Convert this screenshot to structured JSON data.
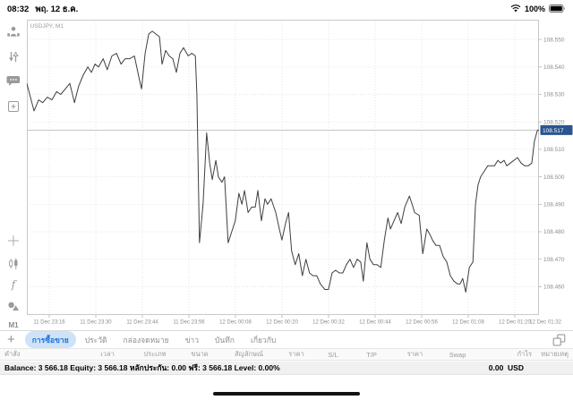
{
  "status_bar": {
    "time": "08:32",
    "date": "พฤ. 12 ธ.ค.",
    "battery_percent": "100%"
  },
  "sidebar": {
    "timeframe_label": "M1",
    "indicators_label": "f"
  },
  "chart": {
    "symbol_label": "USDJPY, M1",
    "badge_color": "#2a5490",
    "line_color": "#3f3f3f",
    "grid_color": "#dcdcdc",
    "axis_text_color": "#8c8c8c",
    "price_line_color": "#b3b3b3",
    "border_color": "#c9c9c9"
  },
  "chart_data": {
    "type": "line",
    "title": "USDJPY, M1",
    "symbol": "USDJPY",
    "timeframe": "M1",
    "current_price": 108.517,
    "ylim": [
      108.4497,
      108.5572
    ],
    "grid": true,
    "y_ticks": [
      108.55,
      108.54,
      108.53,
      108.52,
      108.51,
      108.5,
      108.49,
      108.48,
      108.47,
      108.46
    ],
    "x_tick_labels": [
      "11 Dec 23:16",
      "11 Dec 23:30",
      "11 Dec 23:44",
      "11 Dec 23:56",
      "12 Dec 00:08",
      "12 Dec 00:20",
      "12 Dec 00:32",
      "12 Dec 00:44",
      "12 Dec 00:56",
      "12 Dec 01:08",
      "12 Dec 01:20",
      "12 Dec 01:32"
    ],
    "points": [
      [
        0.0,
        108.534
      ],
      [
        0.007,
        108.529
      ],
      [
        0.014,
        108.524
      ],
      [
        0.023,
        108.528
      ],
      [
        0.031,
        108.527
      ],
      [
        0.04,
        108.529
      ],
      [
        0.049,
        108.528
      ],
      [
        0.058,
        108.531
      ],
      [
        0.066,
        108.53
      ],
      [
        0.075,
        108.532
      ],
      [
        0.084,
        108.534
      ],
      [
        0.093,
        108.527
      ],
      [
        0.101,
        108.533
      ],
      [
        0.11,
        108.537
      ],
      [
        0.119,
        108.54
      ],
      [
        0.126,
        108.538
      ],
      [
        0.133,
        108.541
      ],
      [
        0.14,
        108.54
      ],
      [
        0.149,
        108.543
      ],
      [
        0.157,
        108.539
      ],
      [
        0.166,
        108.544
      ],
      [
        0.175,
        108.545
      ],
      [
        0.184,
        108.541
      ],
      [
        0.192,
        108.543
      ],
      [
        0.201,
        108.543
      ],
      [
        0.21,
        108.544
      ],
      [
        0.219,
        108.536
      ],
      [
        0.224,
        108.532
      ],
      [
        0.231,
        108.545
      ],
      [
        0.238,
        108.552
      ],
      [
        0.245,
        108.553
      ],
      [
        0.252,
        108.552
      ],
      [
        0.259,
        108.551
      ],
      [
        0.264,
        108.541
      ],
      [
        0.271,
        108.546
      ],
      [
        0.278,
        108.544
      ],
      [
        0.285,
        108.543
      ],
      [
        0.292,
        108.538
      ],
      [
        0.299,
        108.545
      ],
      [
        0.306,
        108.547
      ],
      [
        0.315,
        108.544
      ],
      [
        0.322,
        108.545
      ],
      [
        0.329,
        108.544
      ],
      [
        0.332,
        108.53
      ],
      [
        0.337,
        108.476
      ],
      [
        0.344,
        108.49
      ],
      [
        0.351,
        108.516
      ],
      [
        0.357,
        108.505
      ],
      [
        0.362,
        108.499
      ],
      [
        0.369,
        108.506
      ],
      [
        0.374,
        108.5
      ],
      [
        0.381,
        108.498
      ],
      [
        0.386,
        108.5
      ],
      [
        0.393,
        108.476
      ],
      [
        0.4,
        108.48
      ],
      [
        0.407,
        108.484
      ],
      [
        0.414,
        108.494
      ],
      [
        0.42,
        108.49
      ],
      [
        0.425,
        108.495
      ],
      [
        0.432,
        108.487
      ],
      [
        0.439,
        108.489
      ],
      [
        0.446,
        108.489
      ],
      [
        0.451,
        108.495
      ],
      [
        0.458,
        108.484
      ],
      [
        0.465,
        108.492
      ],
      [
        0.47,
        108.49
      ],
      [
        0.477,
        108.492
      ],
      [
        0.486,
        108.487
      ],
      [
        0.493,
        108.481
      ],
      [
        0.498,
        108.477
      ],
      [
        0.505,
        108.483
      ],
      [
        0.511,
        108.487
      ],
      [
        0.517,
        108.473
      ],
      [
        0.524,
        108.468
      ],
      [
        0.531,
        108.472
      ],
      [
        0.538,
        108.464
      ],
      [
        0.545,
        108.47
      ],
      [
        0.552,
        108.465
      ],
      [
        0.559,
        108.464
      ],
      [
        0.566,
        108.464
      ],
      [
        0.573,
        108.461
      ],
      [
        0.582,
        108.459
      ],
      [
        0.589,
        108.459
      ],
      [
        0.596,
        108.465
      ],
      [
        0.603,
        108.466
      ],
      [
        0.61,
        108.465
      ],
      [
        0.617,
        108.465
      ],
      [
        0.624,
        108.468
      ],
      [
        0.631,
        108.47
      ],
      [
        0.638,
        108.467
      ],
      [
        0.645,
        108.47
      ],
      [
        0.652,
        108.469
      ],
      [
        0.657,
        108.462
      ],
      [
        0.664,
        108.476
      ],
      [
        0.67,
        108.47
      ],
      [
        0.677,
        108.468
      ],
      [
        0.684,
        108.468
      ],
      [
        0.691,
        108.467
      ],
      [
        0.698,
        108.477
      ],
      [
        0.705,
        108.485
      ],
      [
        0.71,
        108.481
      ],
      [
        0.717,
        108.484
      ],
      [
        0.724,
        108.487
      ],
      [
        0.731,
        108.483
      ],
      [
        0.738,
        108.489
      ],
      [
        0.747,
        108.493
      ],
      [
        0.754,
        108.489
      ],
      [
        0.757,
        108.487
      ],
      [
        0.766,
        108.486
      ],
      [
        0.773,
        108.472
      ],
      [
        0.781,
        108.481
      ],
      [
        0.787,
        108.479
      ],
      [
        0.792,
        108.477
      ],
      [
        0.799,
        108.475
      ],
      [
        0.806,
        108.475
      ],
      [
        0.813,
        108.471
      ],
      [
        0.82,
        108.469
      ],
      [
        0.827,
        108.464
      ],
      [
        0.834,
        108.462
      ],
      [
        0.841,
        108.461
      ],
      [
        0.846,
        108.461
      ],
      [
        0.851,
        108.463
      ],
      [
        0.857,
        108.458
      ],
      [
        0.864,
        108.467
      ],
      [
        0.871,
        108.469
      ],
      [
        0.876,
        108.49
      ],
      [
        0.881,
        108.497
      ],
      [
        0.886,
        108.5
      ],
      [
        0.893,
        108.502
      ],
      [
        0.9,
        108.504
      ],
      [
        0.907,
        108.504
      ],
      [
        0.913,
        108.504
      ],
      [
        0.92,
        108.506
      ],
      [
        0.925,
        108.505
      ],
      [
        0.932,
        108.506
      ],
      [
        0.937,
        108.504
      ],
      [
        0.944,
        108.505
      ],
      [
        0.951,
        108.506
      ],
      [
        0.958,
        108.507
      ],
      [
        0.965,
        108.505
      ],
      [
        0.972,
        108.504
      ],
      [
        0.979,
        108.504
      ],
      [
        0.986,
        108.505
      ],
      [
        0.991,
        108.513
      ],
      [
        0.997,
        108.517
      ],
      [
        1.0,
        108.517
      ]
    ]
  },
  "tab_bar": {
    "add_label": "+",
    "tabs": [
      {
        "key": "trade",
        "label": "การซื้อขาย",
        "selected": true
      },
      {
        "key": "history",
        "label": "ประวัติ",
        "selected": false
      },
      {
        "key": "mailbox",
        "label": "กล่องจดหมาย",
        "selected": false
      },
      {
        "key": "news",
        "label": "ข่าว",
        "selected": false
      },
      {
        "key": "journal",
        "label": "บันทึก",
        "selected": false
      },
      {
        "key": "about",
        "label": "เกี่ยวกับ",
        "selected": false
      }
    ]
  },
  "orders_table": {
    "columns": [
      {
        "key": "order",
        "label": "คำสั่ง"
      },
      {
        "key": "time",
        "label": "เวลา"
      },
      {
        "key": "type",
        "label": "ประเภท"
      },
      {
        "key": "volume",
        "label": "ขนาด"
      },
      {
        "key": "symbol",
        "label": "สัญลักษณ์"
      },
      {
        "key": "price",
        "label": "ราคา"
      },
      {
        "key": "sl",
        "label": "S/L"
      },
      {
        "key": "tp",
        "label": "T/P"
      },
      {
        "key": "price2",
        "label": "ราคา"
      },
      {
        "key": "swap",
        "label": "Swap"
      },
      {
        "key": "profit",
        "label": "กำไร"
      },
      {
        "key": "comment",
        "label": "หมายเหตุ"
      }
    ]
  },
  "account_summary": {
    "text": "Balance: 3 566.18 Equity: 3 566.18 หลักประกัน: 0.00 ฟรี: 3 566.18 Level: 0.00%",
    "profit": "0.00",
    "currency": "USD"
  }
}
